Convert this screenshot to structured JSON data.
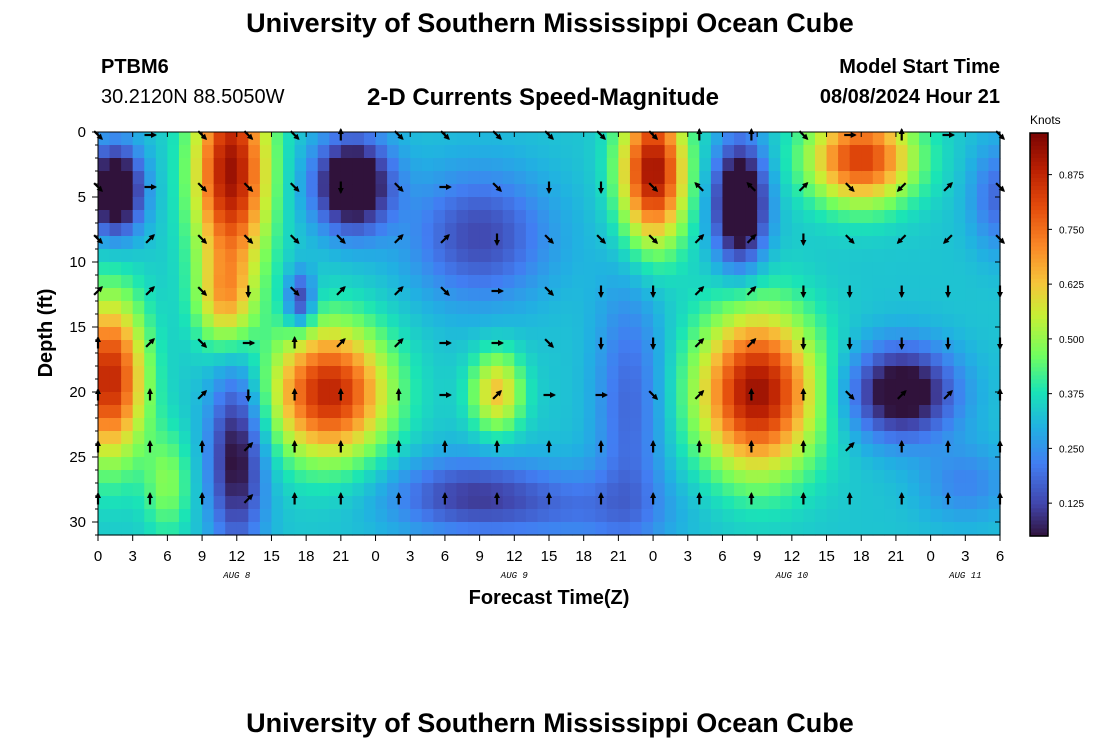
{
  "page": {
    "title_top": "University of Southern Mississippi Ocean Cube",
    "title_bottom": "University of Southern Mississippi Ocean Cube",
    "station": "PTBM6",
    "coordinates": "30.2120N  88.5050W",
    "subtitle": "2-D Currents Speed-Magnitude",
    "model_start_label": "Model Start Time",
    "model_start_value": "08/08/2024 Hour 21"
  },
  "chart_data": {
    "type": "heatmap",
    "title": "2-D Currents Speed-Magnitude",
    "xlabel": "Forecast Time(Z)",
    "ylabel": "Depth (ft)",
    "xlim": [
      0,
      78
    ],
    "ylim": [
      0,
      31
    ],
    "x_ticks": [
      0,
      3,
      6,
      9,
      12,
      15,
      18,
      21,
      24,
      27,
      30,
      33,
      36,
      39,
      42,
      45,
      48,
      51,
      54,
      57,
      60,
      63,
      66,
      69,
      72,
      75,
      78
    ],
    "x_tick_labels": [
      "0",
      "3",
      "6",
      "9",
      "12",
      "15",
      "18",
      "21",
      "0",
      "3",
      "6",
      "9",
      "12",
      "15",
      "18",
      "21",
      "0",
      "3",
      "6",
      "9",
      "12",
      "15",
      "18",
      "21",
      "0",
      "3",
      "6"
    ],
    "y_ticks": [
      0,
      5,
      10,
      15,
      20,
      25,
      30
    ],
    "y_tick_labels": [
      "0",
      "5",
      "10",
      "15",
      "20",
      "25",
      "30"
    ],
    "date_labels": [
      {
        "text": "AUG 8",
        "x": 12
      },
      {
        "text": "AUG 9",
        "x": 36
      },
      {
        "text": "AUG 10",
        "x": 60
      },
      {
        "text": "AUG 11",
        "x": 75
      }
    ],
    "colorbar": {
      "units": "Knots",
      "min": 0.05,
      "max": 0.97,
      "ticks": [
        0.125,
        0.25,
        0.375,
        0.5,
        0.625,
        0.75,
        0.875
      ],
      "tick_labels": [
        "0.125",
        "0.250",
        "0.375",
        "0.500",
        "0.625",
        "0.750",
        "0.875"
      ]
    },
    "speed_blobs_knots": [
      {
        "x": 1.5,
        "y": 4.5,
        "sx": 2.2,
        "sy": 3.2,
        "a": -0.45
      },
      {
        "x": 11.5,
        "y": 3,
        "sx": 3.2,
        "sy": 8,
        "a": 0.6
      },
      {
        "x": 11,
        "y": 13,
        "sx": 2.5,
        "sy": 3.5,
        "a": 0.25
      },
      {
        "x": 22,
        "y": 4,
        "sx": 3.2,
        "sy": 3.5,
        "a": -0.42
      },
      {
        "x": 17.5,
        "y": 13,
        "sx": 1.2,
        "sy": 2.2,
        "a": -0.25
      },
      {
        "x": 1,
        "y": 19,
        "sx": 3,
        "sy": 6,
        "a": 0.55
      },
      {
        "x": 12,
        "y": 25,
        "sx": 2.4,
        "sy": 7,
        "a": -0.3
      },
      {
        "x": 20,
        "y": 20,
        "sx": 5,
        "sy": 5,
        "a": 0.55
      },
      {
        "x": 33,
        "y": 8,
        "sx": 6,
        "sy": 5,
        "a": -0.2
      },
      {
        "x": 32,
        "y": 28,
        "sx": 7,
        "sy": 3,
        "a": -0.2
      },
      {
        "x": 34.5,
        "y": 20,
        "sx": 2.2,
        "sy": 3,
        "a": 0.3
      },
      {
        "x": 48,
        "y": 3,
        "sx": 2.8,
        "sy": 5.5,
        "a": 0.6
      },
      {
        "x": 55.5,
        "y": 5.5,
        "sx": 2.2,
        "sy": 4.5,
        "a": -0.45
      },
      {
        "x": 57,
        "y": 20,
        "sx": 5,
        "sy": 6,
        "a": 0.6
      },
      {
        "x": 46,
        "y": 21,
        "sx": 3,
        "sy": 10,
        "a": -0.15
      },
      {
        "x": 66,
        "y": 2,
        "sx": 4.5,
        "sy": 3.5,
        "a": 0.5
      },
      {
        "x": 69.5,
        "y": 20,
        "sx": 4.5,
        "sy": 3.5,
        "a": -0.35
      },
      {
        "x": 42,
        "y": 29,
        "sx": 8,
        "sy": 3,
        "a": -0.1
      },
      {
        "x": 6,
        "y": 27,
        "sx": 2,
        "sy": 4,
        "a": 0.15
      },
      {
        "x": 78,
        "y": 5,
        "sx": 2.5,
        "sy": 4,
        "a": -0.15
      },
      {
        "x": 75,
        "y": 27,
        "sx": 4,
        "sy": 3,
        "a": -0.1
      }
    ],
    "vector_grid": {
      "x": [
        0,
        4.5,
        9,
        13,
        17,
        21,
        26,
        30,
        34.5,
        39,
        43.5,
        48,
        52,
        56.5,
        61,
        65,
        69.5,
        73.5,
        78
      ],
      "y": [
        0,
        4,
        8,
        12,
        16,
        20,
        24,
        28
      ],
      "directions_deg": [
        [
          135,
          90,
          135,
          135,
          135,
          0,
          135,
          135,
          135,
          135,
          135,
          135,
          0,
          0,
          135,
          90,
          0,
          90,
          135
        ],
        [
          135,
          90,
          135,
          135,
          135,
          180,
          135,
          90,
          135,
          180,
          180,
          135,
          315,
          315,
          45,
          135,
          225,
          45,
          135
        ],
        [
          135,
          45,
          135,
          135,
          135,
          135,
          45,
          45,
          180,
          135,
          135,
          135,
          45,
          45,
          180,
          135,
          225,
          225,
          135
        ],
        [
          45,
          45,
          135,
          180,
          135,
          45,
          45,
          135,
          90,
          135,
          180,
          180,
          45,
          45,
          180,
          180,
          180,
          180,
          180
        ],
        [
          0,
          45,
          135,
          90,
          0,
          45,
          45,
          90,
          90,
          135,
          180,
          180,
          45,
          45,
          180,
          180,
          180,
          180,
          180
        ],
        [
          0,
          0,
          45,
          180,
          0,
          0,
          0,
          90,
          45,
          90,
          90,
          135,
          45,
          0,
          0,
          135,
          45,
          45,
          0
        ],
        [
          0,
          0,
          0,
          45,
          0,
          0,
          0,
          0,
          0,
          0,
          0,
          0,
          0,
          0,
          0,
          45,
          0,
          0,
          0
        ],
        [
          0,
          0,
          0,
          45,
          0,
          0,
          0,
          0,
          0,
          0,
          0,
          0,
          0,
          0,
          0,
          0,
          0,
          0,
          0
        ]
      ]
    }
  }
}
